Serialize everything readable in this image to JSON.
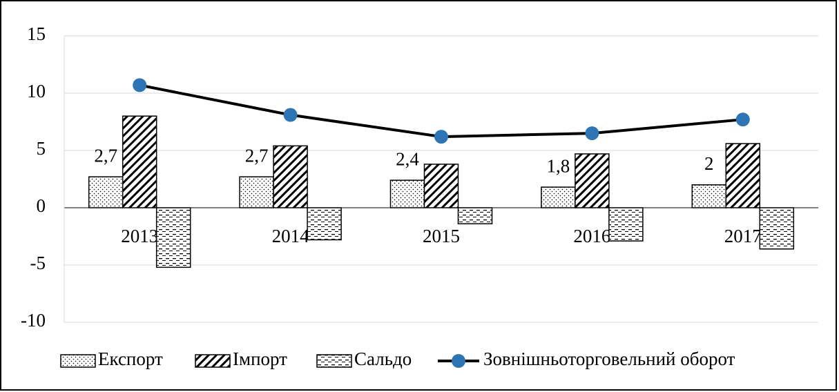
{
  "chart_data": {
    "type": "bar",
    "categories": [
      "2013",
      "2014",
      "2015",
      "2016",
      "2017"
    ],
    "series": [
      {
        "name": "Експорт",
        "type": "bar",
        "pattern": "dots",
        "color": "#000000",
        "values": [
          2.7,
          2.7,
          2.4,
          1.8,
          2
        ],
        "value_labels": [
          "2,7",
          "2,7",
          "2,4",
          "1,8",
          "2"
        ]
      },
      {
        "name": "Імпорт",
        "type": "bar",
        "pattern": "hatch",
        "color": "#000000",
        "values": [
          8.0,
          5.4,
          3.8,
          4.7,
          5.6
        ]
      },
      {
        "name": "Сальдо",
        "type": "bar",
        "pattern": "dashes",
        "color": "#000000",
        "values": [
          -5.2,
          -2.8,
          -1.4,
          -2.9,
          -3.6
        ]
      },
      {
        "name": "Зовнішньоторговельний оборот",
        "type": "line",
        "color": "#2e75b6",
        "line_color": "#000000",
        "values": [
          10.7,
          8.1,
          6.2,
          6.5,
          7.7
        ]
      }
    ],
    "ylim": [
      -10,
      15
    ],
    "yticks": [
      -10,
      -5,
      0,
      5,
      10,
      15
    ],
    "grid": true,
    "legend": "bottom"
  }
}
